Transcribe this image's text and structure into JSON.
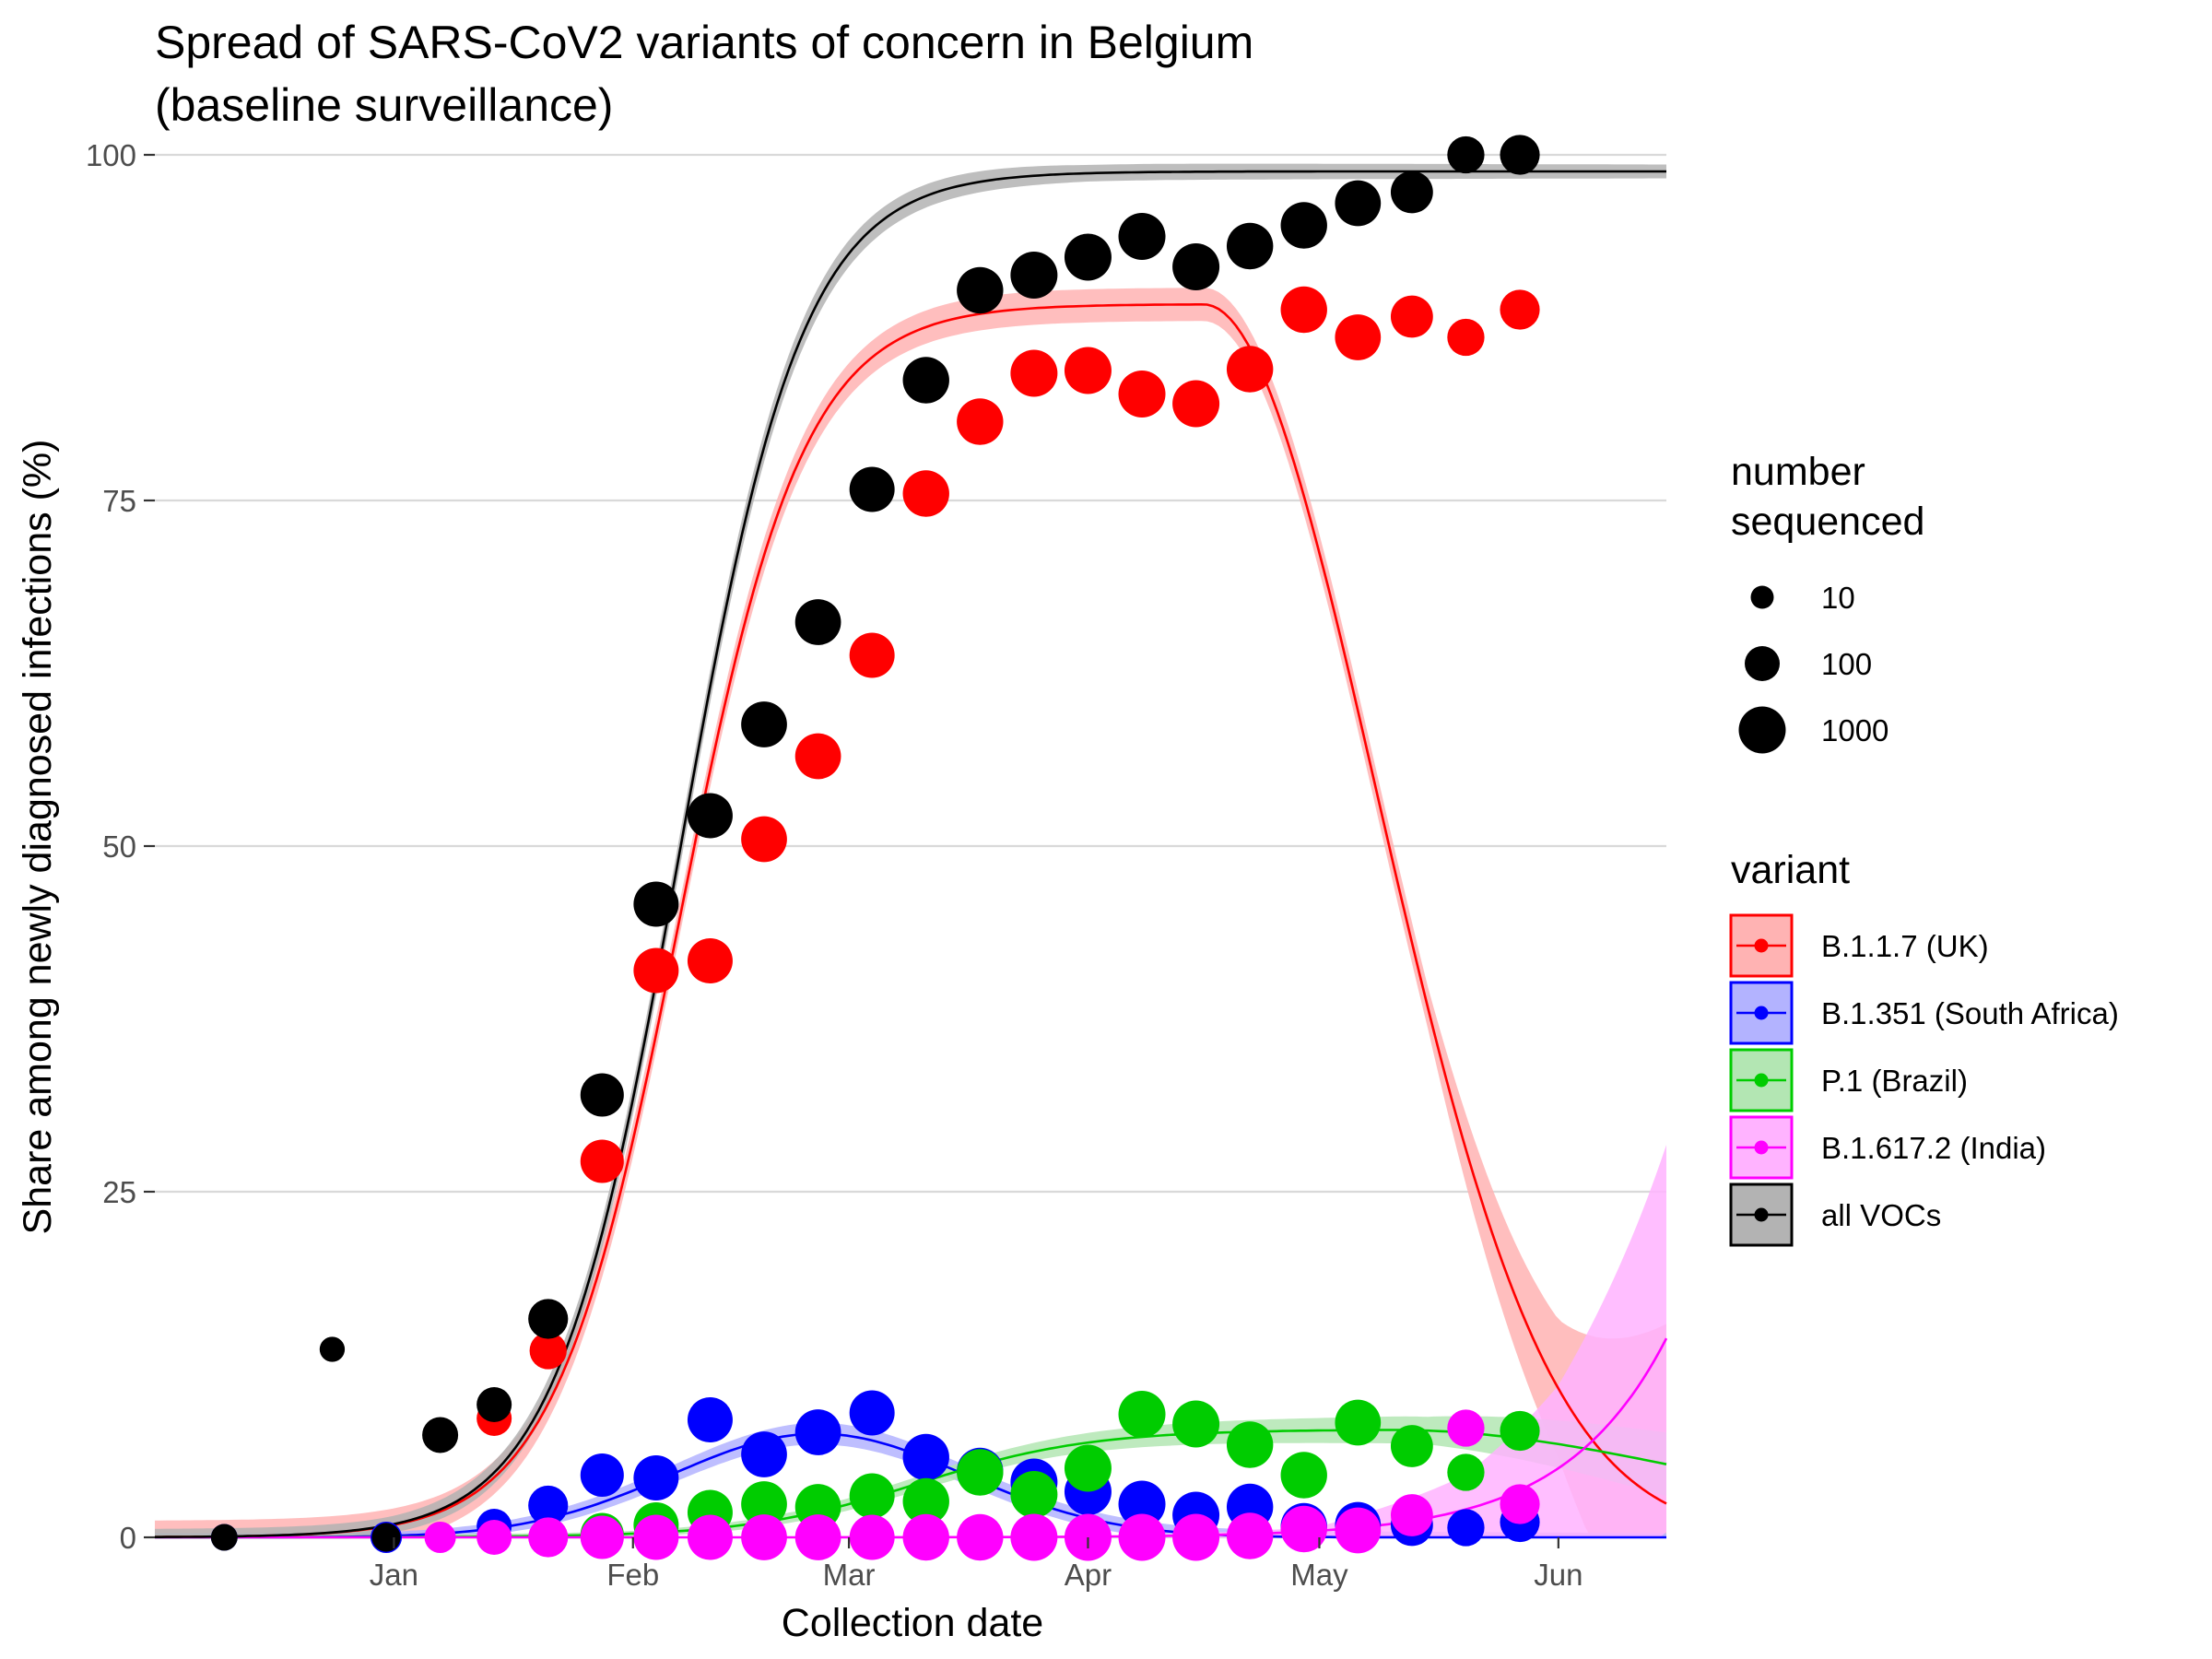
{
  "chart_data": {
    "type": "scatter",
    "title_line1": "Spread of SARS-CoV2 variants of concern in Belgium",
    "title_line2": "(baseline surveillance)",
    "xlabel": "Collection date",
    "ylabel": "Share among newly diagnosed infections (%)",
    "x_range": [
      "2020-12-01",
      "2021-06-15"
    ],
    "x_ticks": [
      {
        "date": "2021-01-01",
        "label": "Jan"
      },
      {
        "date": "2021-02-01",
        "label": "Feb"
      },
      {
        "date": "2021-03-01",
        "label": "Mar"
      },
      {
        "date": "2021-04-01",
        "label": "Apr"
      },
      {
        "date": "2021-05-01",
        "label": "May"
      },
      {
        "date": "2021-06-01",
        "label": "Jun"
      }
    ],
    "ylim": [
      0,
      100
    ],
    "y_ticks": [
      0,
      25,
      50,
      75,
      100
    ],
    "grid": true,
    "legend_position": "right",
    "size_legend": {
      "title_line1": "number",
      "title_line2": "sequenced",
      "items": [
        {
          "label": "10",
          "n": 10
        },
        {
          "label": "100",
          "n": 100
        },
        {
          "label": "1000",
          "n": 1000
        }
      ]
    },
    "variant_legend_title": "variant",
    "series": [
      {
        "name": "B.1.1.7 (UK)",
        "color": "#ff0000",
        "fill": "#ffb3b3",
        "fit": {
          "type": "logistic",
          "peak": 89.2,
          "mid": "2021-02-07",
          "rate": 0.124,
          "decline": 0.01,
          "decline_from": "2021-04-16"
        },
        "band": [
          {
            "date": "2021-04-16",
            "hw": 1.2
          },
          {
            "date": "2021-05-15",
            "hw": 1.5
          },
          {
            "date": "2021-06-01",
            "hw": 5
          },
          {
            "date": "2021-06-15",
            "hw": 13
          }
        ],
        "points": [
          {
            "date": "2021-01-14",
            "value": 8.6,
            "n": 100
          },
          {
            "date": "2021-01-21",
            "value": 13.5,
            "n": 150
          },
          {
            "date": "2021-01-28",
            "value": 27.2,
            "n": 500
          },
          {
            "date": "2021-02-04",
            "value": 41,
            "n": 700
          },
          {
            "date": "2021-02-11",
            "value": 41.7,
            "n": 700
          },
          {
            "date": "2021-02-18",
            "value": 50.5,
            "n": 800
          },
          {
            "date": "2021-02-25",
            "value": 56.5,
            "n": 800
          },
          {
            "date": "2021-03-04",
            "value": 63.8,
            "n": 700
          },
          {
            "date": "2021-03-11",
            "value": 75.5,
            "n": 900
          },
          {
            "date": "2021-03-18",
            "value": 80.7,
            "n": 900
          },
          {
            "date": "2021-03-25",
            "value": 84.2,
            "n": 1000
          },
          {
            "date": "2021-04-01",
            "value": 84.4,
            "n": 1000
          },
          {
            "date": "2021-04-08",
            "value": 82.7,
            "n": 1000
          },
          {
            "date": "2021-04-15",
            "value": 82,
            "n": 1000
          },
          {
            "date": "2021-04-22",
            "value": 84.5,
            "n": 900
          },
          {
            "date": "2021-04-29",
            "value": 88.8,
            "n": 900
          },
          {
            "date": "2021-05-06",
            "value": 86.8,
            "n": 800
          },
          {
            "date": "2021-05-13",
            "value": 88.3,
            "n": 400
          },
          {
            "date": "2021-05-20",
            "value": 86.8,
            "n": 150
          },
          {
            "date": "2021-05-27",
            "value": 88.8,
            "n": 250
          }
        ]
      },
      {
        "name": "B.1.351 (South Africa)",
        "color": "#0000ff",
        "fill": "#b3b3ff",
        "fit": {
          "type": "gaussian",
          "peak": 7.5,
          "center": "2021-02-25",
          "width": 19
        },
        "band": [
          {
            "date": "2021-01-01",
            "hw": 0.3
          },
          {
            "date": "2021-02-25",
            "hw": 0.8
          },
          {
            "date": "2021-04-15",
            "hw": 0.5
          },
          {
            "date": "2021-06-15",
            "hw": 0.3
          }
        ],
        "points": [
          {
            "date": "2020-12-10",
            "value": 0,
            "n": 20
          },
          {
            "date": "2020-12-31",
            "value": 0,
            "n": 50
          },
          {
            "date": "2021-01-14",
            "value": 0.8,
            "n": 100
          },
          {
            "date": "2021-01-21",
            "value": 2.3,
            "n": 250
          },
          {
            "date": "2021-01-28",
            "value": 4.5,
            "n": 500
          },
          {
            "date": "2021-02-04",
            "value": 4.3,
            "n": 700
          },
          {
            "date": "2021-02-11",
            "value": 8.5,
            "n": 700
          },
          {
            "date": "2021-02-18",
            "value": 6,
            "n": 800
          },
          {
            "date": "2021-02-25",
            "value": 7.6,
            "n": 800
          },
          {
            "date": "2021-03-04",
            "value": 9,
            "n": 700
          },
          {
            "date": "2021-03-11",
            "value": 5.8,
            "n": 900
          },
          {
            "date": "2021-03-18",
            "value": 4.8,
            "n": 900
          },
          {
            "date": "2021-03-25",
            "value": 4,
            "n": 1000
          },
          {
            "date": "2021-04-01",
            "value": 3.3,
            "n": 1000
          },
          {
            "date": "2021-04-08",
            "value": 2.4,
            "n": 1000
          },
          {
            "date": "2021-04-15",
            "value": 1.6,
            "n": 1000
          },
          {
            "date": "2021-04-22",
            "value": 2.2,
            "n": 900
          },
          {
            "date": "2021-04-29",
            "value": 0.8,
            "n": 900
          },
          {
            "date": "2021-05-06",
            "value": 0.9,
            "n": 800
          },
          {
            "date": "2021-05-13",
            "value": 0.9,
            "n": 400
          },
          {
            "date": "2021-05-20",
            "value": 0.7,
            "n": 150
          },
          {
            "date": "2021-05-27",
            "value": 1.1,
            "n": 250
          }
        ]
      },
      {
        "name": "P.1 (Brazil)",
        "color": "#00cc00",
        "fill": "#b3e6b3",
        "fit": {
          "type": "logistic",
          "peak": 7.8,
          "mid": "2021-03-10",
          "rate": 0.09,
          "decline": 0.003,
          "decline_from": "2021-05-10"
        },
        "band": [
          {
            "date": "2021-02-01",
            "hw": 0.2
          },
          {
            "date": "2021-04-01",
            "hw": 0.7
          },
          {
            "date": "2021-05-15",
            "hw": 1
          },
          {
            "date": "2021-06-15",
            "hw": 2.3
          }
        ],
        "points": [
          {
            "date": "2021-01-28",
            "value": 0.2,
            "n": 500
          },
          {
            "date": "2021-02-04",
            "value": 0.9,
            "n": 700
          },
          {
            "date": "2021-02-11",
            "value": 1.8,
            "n": 700
          },
          {
            "date": "2021-02-18",
            "value": 2.4,
            "n": 800
          },
          {
            "date": "2021-02-25",
            "value": 2.2,
            "n": 800
          },
          {
            "date": "2021-03-04",
            "value": 3,
            "n": 700
          },
          {
            "date": "2021-03-11",
            "value": 2.6,
            "n": 900
          },
          {
            "date": "2021-03-18",
            "value": 4.7,
            "n": 900
          },
          {
            "date": "2021-03-25",
            "value": 3.1,
            "n": 1000
          },
          {
            "date": "2021-04-01",
            "value": 5,
            "n": 1000
          },
          {
            "date": "2021-04-08",
            "value": 8.9,
            "n": 1000
          },
          {
            "date": "2021-04-15",
            "value": 8.2,
            "n": 1000
          },
          {
            "date": "2021-04-22",
            "value": 6.7,
            "n": 900
          },
          {
            "date": "2021-04-29",
            "value": 4.5,
            "n": 900
          },
          {
            "date": "2021-05-06",
            "value": 8.3,
            "n": 800
          },
          {
            "date": "2021-05-13",
            "value": 6.6,
            "n": 400
          },
          {
            "date": "2021-05-20",
            "value": 4.7,
            "n": 150
          },
          {
            "date": "2021-05-27",
            "value": 7.7,
            "n": 250
          }
        ]
      },
      {
        "name": "B.1.617.2 (India)",
        "color": "#ff00ff",
        "fill": "#ffb3ff",
        "fit": {
          "type": "exponential",
          "start": 0.05,
          "start_date": "2021-04-01",
          "rate": 0.0755
        },
        "band": [
          {
            "date": "2021-04-01",
            "hw": 0.05
          },
          {
            "date": "2021-05-01",
            "hw": 0.3
          },
          {
            "date": "2021-05-20",
            "hw": 2.5
          },
          {
            "date": "2021-06-01",
            "hw": 6
          },
          {
            "date": "2021-06-15",
            "hw": 14
          }
        ],
        "points": [
          {
            "date": "2021-01-07",
            "value": 0,
            "n": 50
          },
          {
            "date": "2021-01-14",
            "value": 0,
            "n": 100
          },
          {
            "date": "2021-01-21",
            "value": 0,
            "n": 250
          },
          {
            "date": "2021-01-28",
            "value": 0,
            "n": 500
          },
          {
            "date": "2021-02-04",
            "value": 0,
            "n": 700
          },
          {
            "date": "2021-02-11",
            "value": 0,
            "n": 700
          },
          {
            "date": "2021-02-18",
            "value": 0,
            "n": 800
          },
          {
            "date": "2021-02-25",
            "value": 0,
            "n": 800
          },
          {
            "date": "2021-03-04",
            "value": 0,
            "n": 700
          },
          {
            "date": "2021-03-11",
            "value": 0,
            "n": 900
          },
          {
            "date": "2021-03-18",
            "value": 0,
            "n": 900
          },
          {
            "date": "2021-03-25",
            "value": 0,
            "n": 1000
          },
          {
            "date": "2021-04-01",
            "value": 0,
            "n": 1000
          },
          {
            "date": "2021-04-08",
            "value": 0,
            "n": 1000
          },
          {
            "date": "2021-04-15",
            "value": 0,
            "n": 1000
          },
          {
            "date": "2021-04-22",
            "value": 0.1,
            "n": 900
          },
          {
            "date": "2021-04-29",
            "value": 0.6,
            "n": 900
          },
          {
            "date": "2021-05-06",
            "value": 0.5,
            "n": 800
          },
          {
            "date": "2021-05-13",
            "value": 1.6,
            "n": 400
          },
          {
            "date": "2021-05-20",
            "value": 7.9,
            "n": 150
          },
          {
            "date": "2021-05-27",
            "value": 2.4,
            "n": 250
          }
        ]
      },
      {
        "name": "all VOCs",
        "color": "#000000",
        "fill": "#b3b3b3",
        "fit": {
          "type": "logistic",
          "peak": 98.8,
          "mid": "2021-02-07",
          "rate": 0.125
        },
        "band": [
          {
            "date": "2021-01-01",
            "hw": 0.6
          },
          {
            "date": "2021-02-07",
            "hw": 1.2
          },
          {
            "date": "2021-04-01",
            "hw": 0.6
          },
          {
            "date": "2021-06-15",
            "hw": 0.5
          }
        ],
        "points": [
          {
            "date": "2020-12-10",
            "value": 0,
            "n": 20
          },
          {
            "date": "2020-12-24",
            "value": 13.6,
            "n": 15
          },
          {
            "date": "2020-12-31",
            "value": 0,
            "n": 30
          },
          {
            "date": "2021-01-07",
            "value": 7.4,
            "n": 120
          },
          {
            "date": "2021-01-14",
            "value": 9.6,
            "n": 100
          },
          {
            "date": "2021-01-21",
            "value": 15.8,
            "n": 250
          },
          {
            "date": "2021-01-28",
            "value": 32,
            "n": 500
          },
          {
            "date": "2021-02-04",
            "value": 45.8,
            "n": 700
          },
          {
            "date": "2021-02-11",
            "value": 52.2,
            "n": 700
          },
          {
            "date": "2021-02-18",
            "value": 58.8,
            "n": 800
          },
          {
            "date": "2021-02-25",
            "value": 66.2,
            "n": 800
          },
          {
            "date": "2021-03-04",
            "value": 75.8,
            "n": 700
          },
          {
            "date": "2021-03-11",
            "value": 83.7,
            "n": 900
          },
          {
            "date": "2021-03-18",
            "value": 90.2,
            "n": 900
          },
          {
            "date": "2021-03-25",
            "value": 91.3,
            "n": 1000
          },
          {
            "date": "2021-04-01",
            "value": 92.6,
            "n": 1000
          },
          {
            "date": "2021-04-08",
            "value": 94.1,
            "n": 1000
          },
          {
            "date": "2021-04-15",
            "value": 91.9,
            "n": 1000
          },
          {
            "date": "2021-04-22",
            "value": 93.4,
            "n": 900
          },
          {
            "date": "2021-04-29",
            "value": 94.9,
            "n": 900
          },
          {
            "date": "2021-05-06",
            "value": 96.5,
            "n": 800
          },
          {
            "date": "2021-05-13",
            "value": 97.3,
            "n": 400
          },
          {
            "date": "2021-05-20",
            "value": 100,
            "n": 150
          },
          {
            "date": "2021-05-27",
            "value": 100,
            "n": 250
          }
        ]
      }
    ]
  }
}
